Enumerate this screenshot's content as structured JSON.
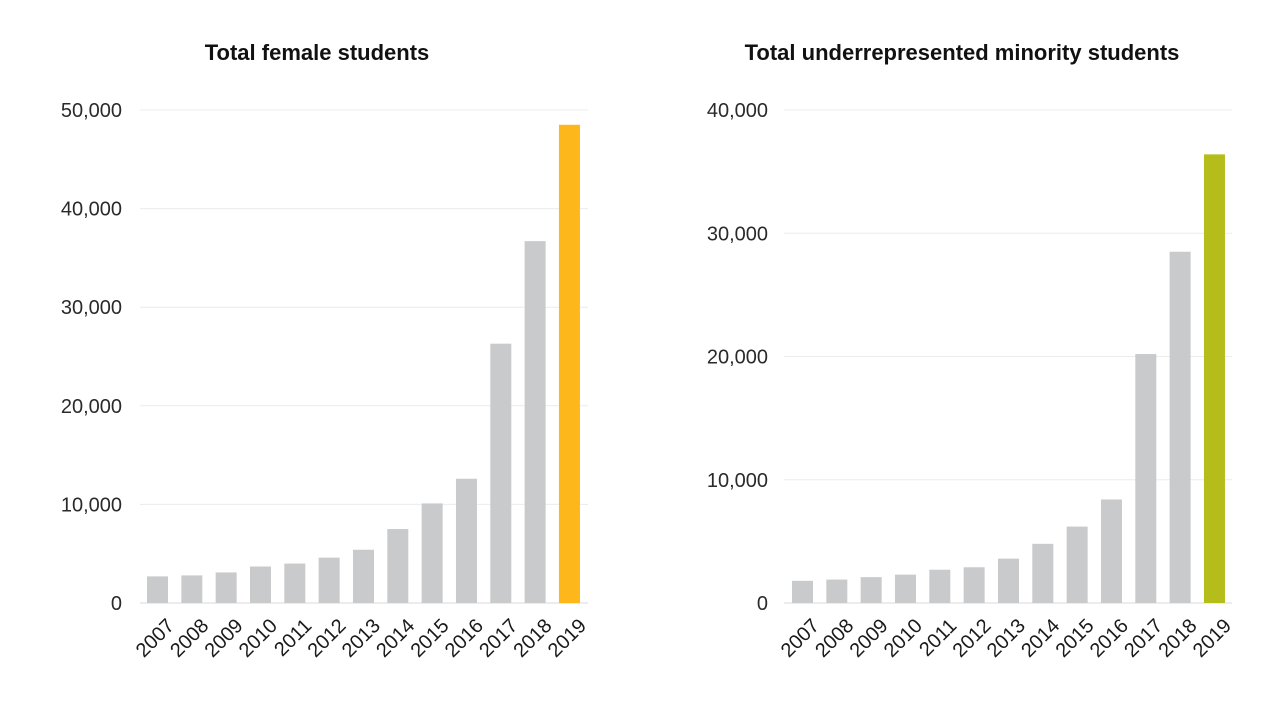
{
  "chart_data": [
    {
      "type": "bar",
      "title": "Total female students",
      "xlabel": "",
      "ylabel": "",
      "categories": [
        "2007",
        "2008",
        "2009",
        "2010",
        "2011",
        "2012",
        "2013",
        "2014",
        "2015",
        "2016",
        "2017",
        "2018",
        "2019"
      ],
      "values": [
        2700,
        2800,
        3100,
        3700,
        4000,
        4600,
        5400,
        7500,
        10100,
        12600,
        26300,
        36700,
        48500
      ],
      "ylim": [
        0,
        50000
      ],
      "yticks": [
        0,
        10000,
        20000,
        30000,
        40000,
        50000
      ],
      "ytick_labels": [
        "0",
        "10,000",
        "20,000",
        "30,000",
        "40,000",
        "50,000"
      ],
      "grid": true,
      "bar_color": "#c9cacc",
      "highlight_color": "#fdb71b",
      "highlight_index": 12
    },
    {
      "type": "bar",
      "title": "Total underrepresented minority students",
      "xlabel": "",
      "ylabel": "",
      "categories": [
        "2007",
        "2008",
        "2009",
        "2010",
        "2011",
        "2012",
        "2013",
        "2014",
        "2015",
        "2016",
        "2017",
        "2018",
        "2019"
      ],
      "values": [
        1800,
        1900,
        2100,
        2300,
        2700,
        2900,
        3600,
        4800,
        6200,
        8400,
        20200,
        28500,
        36400
      ],
      "ylim": [
        0,
        40000
      ],
      "yticks": [
        0,
        10000,
        20000,
        30000,
        40000
      ],
      "ytick_labels": [
        "0",
        "10,000",
        "20,000",
        "30,000",
        "40,000"
      ],
      "grid": true,
      "bar_color": "#c9cacc",
      "highlight_color": "#b5bd1b",
      "highlight_index": 12
    }
  ]
}
